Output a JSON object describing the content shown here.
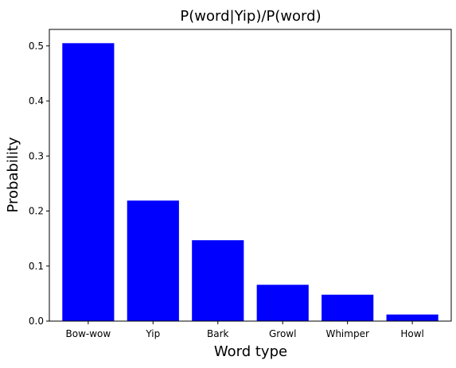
{
  "chart_data": {
    "type": "bar",
    "title": "P(word|Yip)/P(word)",
    "xlabel": "Word type",
    "ylabel": "Probability",
    "categories": [
      "Bow-wow",
      "Yip",
      "Bark",
      "Growl",
      "Whimper",
      "Howl"
    ],
    "values": [
      0.505,
      0.219,
      0.147,
      0.066,
      0.048,
      0.012
    ],
    "ylim": [
      0,
      0.53
    ],
    "yticks": [
      0.0,
      0.1,
      0.2,
      0.3,
      0.4,
      0.5
    ],
    "ytick_labels": [
      "0.0",
      "0.1",
      "0.2",
      "0.3",
      "0.4",
      "0.5"
    ],
    "bar_color": "#0000ff",
    "grid": false,
    "legend": "none"
  }
}
